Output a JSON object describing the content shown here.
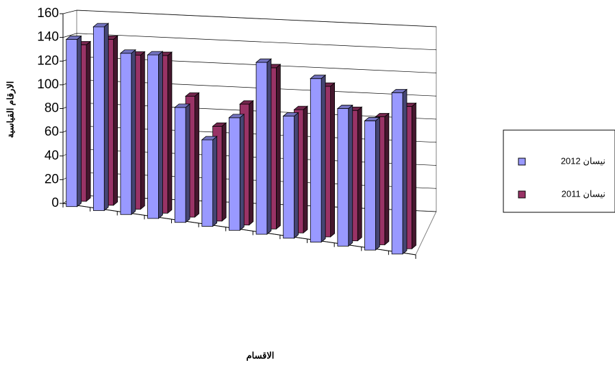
{
  "chart_data": {
    "type": "bar3d",
    "x_label": "الاقسام",
    "y_label": "الارقام القياسية",
    "categories": [
      null,
      null,
      null,
      null,
      null,
      null,
      null,
      null,
      null,
      null,
      null,
      null,
      null
    ],
    "series": [
      {
        "name": "نيسان 2012",
        "color": "#9999ff",
        "values": [
          141,
          155,
          136,
          138,
          97,
          73,
          95,
          145,
          103,
          138,
          116,
          109,
          136
        ]
      },
      {
        "name": "نيسان 2011",
        "color": "#993366",
        "values": [
          132,
          140,
          130,
          133,
          102,
          80,
          102,
          136,
          104,
          127,
          110,
          108,
          120
        ]
      }
    ],
    "ylim": [
      0,
      160
    ],
    "yticks": [
      0,
      20,
      40,
      60,
      80,
      100,
      120,
      140,
      160
    ],
    "grid": true,
    "legend": "right"
  }
}
